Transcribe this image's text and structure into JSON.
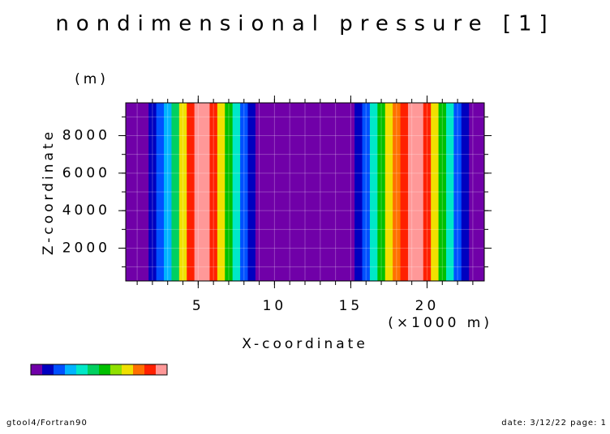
{
  "chart_data": {
    "type": "heatmap",
    "title": "nondimensional pressure [1]",
    "xlabel": "X-coordinate",
    "xunit": "(×1000 m)",
    "ylabel": "Z-coordinate",
    "yunit": "(m)",
    "x": [
      0.5,
      1,
      1.5,
      2,
      2.5,
      3,
      3.5,
      4,
      4.5,
      5,
      5.5,
      6,
      6.5,
      7,
      7.5,
      8,
      8.5,
      9,
      9.5,
      10,
      10.5,
      11,
      11.5,
      12,
      12.5,
      13,
      13.5,
      14,
      14.5,
      15,
      15.5,
      16,
      16.5,
      17,
      17.5,
      18,
      18.5,
      19,
      19.5,
      20,
      20.5,
      21,
      21.5,
      22,
      22.5,
      23,
      23.5
    ],
    "values": [
      0,
      0,
      0,
      1,
      2,
      3,
      5,
      8,
      10,
      11,
      11,
      10,
      8,
      6,
      4,
      2,
      1,
      0,
      0,
      0,
      0,
      0,
      0,
      0,
      0,
      0,
      0,
      0,
      0,
      0,
      1,
      2,
      4,
      6,
      8,
      9,
      10,
      11,
      11,
      10,
      8,
      6,
      4,
      2,
      1,
      0,
      0
    ],
    "colors": [
      "#7000a8",
      "#0000c0",
      "#0050ff",
      "#00b4ff",
      "#00e8c8",
      "#00d060",
      "#00c000",
      "#90e000",
      "#f0e000",
      "#ff7000",
      "#ff2000",
      "#ff9898"
    ],
    "xlim": [
      0.25,
      23.75
    ],
    "ylim": [
      250,
      9750
    ],
    "xticks": [
      5,
      10,
      15,
      20
    ],
    "yticks": [
      2000,
      4000,
      6000,
      8000
    ],
    "xminor": [
      1,
      2,
      3,
      4,
      5,
      6,
      7,
      8,
      9,
      10,
      11,
      12,
      13,
      14,
      15,
      16,
      17,
      18,
      19,
      20,
      21,
      22,
      23
    ],
    "yminor": [
      1000,
      2000,
      3000,
      4000,
      5000,
      6000,
      7000,
      8000,
      9000
    ],
    "grid": true
  },
  "footer": {
    "left": "gtool4/Fortran90",
    "right": "date: 3/12/22 page: 1"
  }
}
